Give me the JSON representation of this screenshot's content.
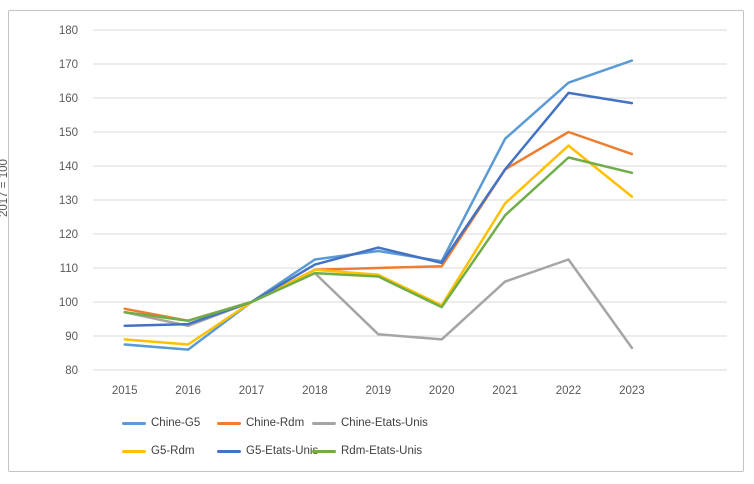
{
  "y_axis_title": "2017 = 100",
  "chart_data": {
    "type": "line",
    "title": "",
    "x_labels": [
      "2015",
      "2016",
      "2017",
      "2018",
      "2019",
      "2020",
      "2021",
      "2022",
      "2023"
    ],
    "ylim": [
      80,
      180
    ],
    "ytick_step": 10,
    "grid": "horizontal",
    "gridline_color": "#d9d9d9",
    "axis_text_color": "#595959",
    "legend_position": "bottom",
    "series": [
      {
        "name": "Chine-G5",
        "color": "#5B9BD5",
        "values": [
          87.5,
          86,
          100,
          112.5,
          115,
          112,
          148,
          164.5,
          171
        ]
      },
      {
        "name": "Chine-Rdm",
        "color": "#ED7D31",
        "values": [
          98,
          94.5,
          100,
          109.5,
          110,
          110.5,
          139,
          150,
          143.5
        ]
      },
      {
        "name": "Chine-Etats-Unis",
        "color": "#A5A5A5",
        "values": [
          97,
          93,
          100,
          108.5,
          90.5,
          89,
          106,
          112.5,
          86.5
        ]
      },
      {
        "name": "G5-Rdm",
        "color": "#FFC000",
        "values": [
          89,
          87.5,
          100,
          109.5,
          108,
          99,
          129,
          146,
          131
        ]
      },
      {
        "name": "G5-Etats-Unis",
        "color": "#4472C4",
        "values": [
          93,
          93.5,
          100,
          111,
          116,
          111.5,
          139,
          161.5,
          158.5
        ]
      },
      {
        "name": "Rdm-Etats-Unis",
        "color": "#70AD47",
        "values": [
          97,
          94.5,
          100,
          108.5,
          107.5,
          98.5,
          125.5,
          142.5,
          138
        ]
      }
    ]
  }
}
